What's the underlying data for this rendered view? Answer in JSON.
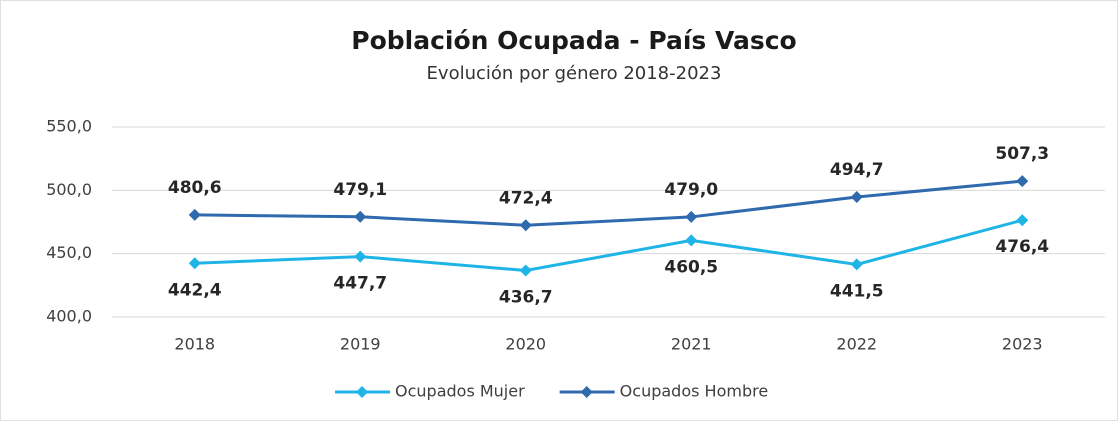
{
  "chart_data": {
    "type": "line",
    "title": "Población Ocupada - País Vasco",
    "subtitle": "Evolución por género 2018-2023",
    "categories": [
      "2018",
      "2019",
      "2020",
      "2021",
      "2022",
      "2023"
    ],
    "series": [
      {
        "name": "Ocupados Mujer",
        "color": "#1fb4e6",
        "values": [
          442.4,
          447.7,
          436.7,
          460.5,
          441.5,
          476.4
        ],
        "value_labels": [
          "442,4",
          "447,7",
          "436,7",
          "460,5",
          "441,5",
          "476,4"
        ]
      },
      {
        "name": "Ocupados Hombre",
        "color": "#2e6aad",
        "values": [
          480.6,
          479.1,
          472.4,
          479.0,
          494.7,
          507.3
        ],
        "value_labels": [
          "480,6",
          "479,1",
          "472,4",
          "479,0",
          "494,7",
          "507,3"
        ]
      }
    ],
    "ylim": [
      400,
      550
    ],
    "yticks": [
      {
        "value": 400,
        "label": "400,0"
      },
      {
        "value": 450,
        "label": "450,0"
      },
      {
        "value": 500,
        "label": "500,0"
      },
      {
        "value": 550,
        "label": "550,0"
      }
    ],
    "grid": true,
    "legend": "bottom"
  }
}
